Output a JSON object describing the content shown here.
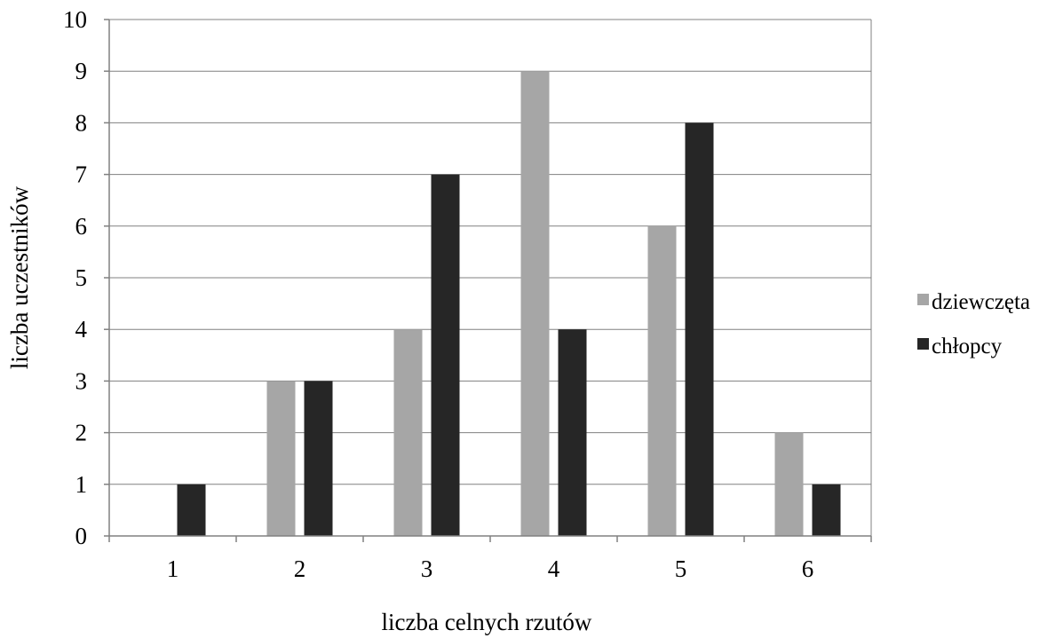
{
  "chart_data": {
    "type": "bar",
    "title": "",
    "xlabel": "liczba celnych rzutów",
    "ylabel": "liczba uczestników",
    "categories": [
      "1",
      "2",
      "3",
      "4",
      "5",
      "6"
    ],
    "yticks": [
      "0",
      "1",
      "2",
      "3",
      "4",
      "5",
      "6",
      "7",
      "8",
      "9",
      "10"
    ],
    "ylim": [
      0,
      10
    ],
    "grid": true,
    "legend_position": "right",
    "series": [
      {
        "name": "dziewczęta",
        "color": "#a6a6a6",
        "values": [
          0,
          3,
          4,
          9,
          6,
          2
        ]
      },
      {
        "name": "chłopcy",
        "color": "#262626",
        "values": [
          1,
          3,
          7,
          4,
          8,
          1
        ]
      }
    ]
  }
}
